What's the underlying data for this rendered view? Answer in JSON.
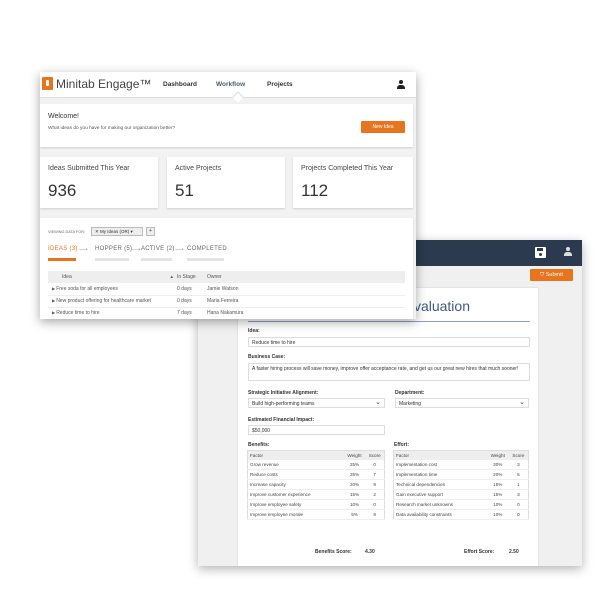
{
  "app": {
    "brand": "Minitab Engage™",
    "nav": [
      "Dashboard",
      "Workflow",
      "Projects"
    ],
    "active_nav": "Workflow",
    "accent": "#e8741e",
    "header_dark": "#2b3a4f"
  },
  "welcome": {
    "title": "Welcome!",
    "subtitle": "What ideas do you have for making our organization better?",
    "button": "New Idea"
  },
  "stats": [
    {
      "label": "Ideas Submitted This Year",
      "value": "936"
    },
    {
      "label": "Active Projects",
      "value": "51"
    },
    {
      "label": "Projects Completed This Year",
      "value": "112"
    }
  ],
  "filter": {
    "label": "VIEWING DATA FOR:",
    "value": "My Ideas (OR)"
  },
  "stages": [
    "IDEAS (3)",
    "HOPPER (5)",
    "ACTIVE (2)",
    "COMPLETED"
  ],
  "ideas_table": {
    "columns": [
      "Idea",
      "In Stage",
      "Owner"
    ],
    "rows": [
      [
        "Free soda for all employees",
        "0 days",
        "Jamie Watson"
      ],
      [
        "New product offering for healthcare market",
        "0 days",
        "Maria Ferreira"
      ],
      [
        "Reduce time to hire",
        "7 days",
        "Hana Nakamura"
      ]
    ]
  },
  "evaluation": {
    "submit": "Submit",
    "title": "Idea Evaluation",
    "idea_label": "Idea:",
    "idea_value": "Reduce time to hire",
    "case_label": "Business Case:",
    "case_value": "A faster hiring process will save money, improve offer acceptance rate, and get us our great new hires that much sooner!",
    "strategic_label": "Strategic Initiative Alignment:",
    "strategic_value": "Build high-performing teams",
    "dept_label": "Department:",
    "dept_value": "Marketing",
    "impact_label": "Estimated Financial Impact:",
    "impact_value": "$50,000",
    "benefits": {
      "label": "Benefits:",
      "columns": [
        "Factor",
        "Weight",
        "Score"
      ],
      "rows": [
        [
          "Grow revenue",
          "25%",
          "0"
        ],
        [
          "Reduce costs",
          "25%",
          "7"
        ],
        [
          "Increase capacity",
          "20%",
          "9"
        ],
        [
          "Improve customer experience",
          "15%",
          "2"
        ],
        [
          "Improve employee safety",
          "10%",
          "0"
        ],
        [
          "Improve employee morale",
          "5%",
          "9"
        ]
      ],
      "score_label": "Benefits Score:",
      "score": "4.30"
    },
    "effort": {
      "label": "Effort:",
      "columns": [
        "Factor",
        "Weight",
        "Score"
      ],
      "rows": [
        [
          "Implementation cost",
          "30%",
          "3"
        ],
        [
          "Implementation time",
          "20%",
          "5"
        ],
        [
          "Technical dependencies",
          "15%",
          "1"
        ],
        [
          "Gain executive support",
          "15%",
          "3"
        ],
        [
          "Research market unknowns",
          "10%",
          "0"
        ],
        [
          "Data availability constraints",
          "10%",
          "0"
        ]
      ],
      "score_label": "Effort Score:",
      "score": "2.50"
    }
  }
}
